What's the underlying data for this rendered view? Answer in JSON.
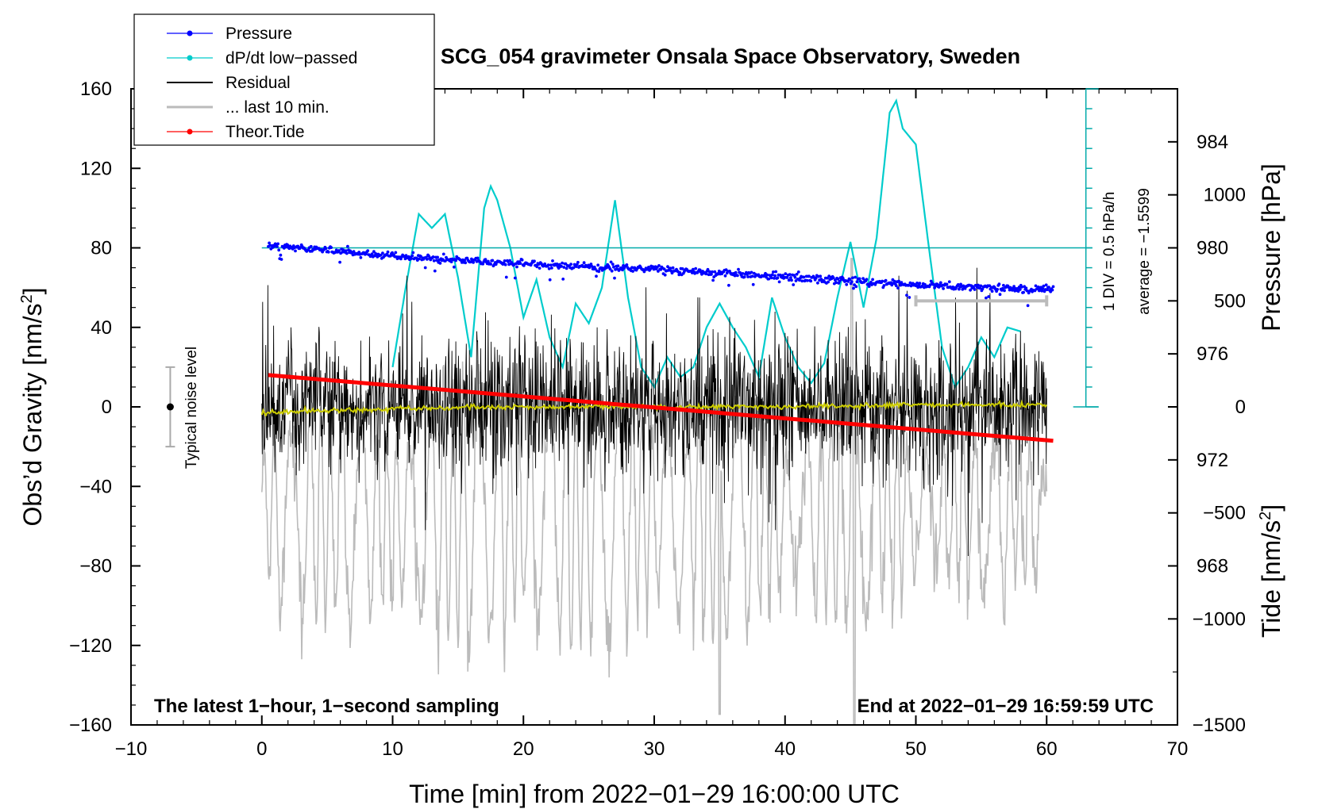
{
  "chart_data": {
    "type": "line",
    "title": "SCG_054 gravimeter Onsala Space Observatory, Sweden",
    "xlabel": "Time [min] from 2022−01−29 16:00:00 UTC",
    "ylabel_left": "Obs’d Gravity [nm/s",
    "ylabel_right_top": "Pressure [hPa]",
    "ylabel_right_bottom": "Tide [nm/s",
    "superscript": "2",
    "close_bracket": "]",
    "xlim": [
      -10,
      70
    ],
    "ylim": [
      -160,
      160
    ],
    "x_ticks": [
      "−10",
      "0",
      "10",
      "20",
      "30",
      "40",
      "50",
      "60",
      "70"
    ],
    "y_ticks": [
      "160",
      "120",
      "80",
      "40",
      "0",
      "−40",
      "−80",
      "−120",
      "−160"
    ],
    "pressure_axis": {
      "range": [
        962,
        986
      ],
      "ticks": [
        "984",
        "980",
        "976",
        "972",
        "968"
      ]
    },
    "tide_axis": {
      "range": [
        -1500,
        1500
      ],
      "ticks": [
        "1000",
        "500",
        "0",
        "−500",
        "−1000",
        "−1500"
      ]
    },
    "legend": [
      {
        "label": "Pressure",
        "color": "#0000ff",
        "marker": "dot"
      },
      {
        "label": "dP/dt low−passed",
        "color": "#00cccc",
        "marker": "dot"
      },
      {
        "label": "Residual",
        "color": "#000000",
        "marker": "line"
      },
      {
        "label": "... last 10 min.",
        "color": "#bbbbbb",
        "marker": "line"
      },
      {
        "label": "Theor.Tide",
        "color": "#ff0000",
        "marker": "dot"
      }
    ],
    "series": [
      {
        "name": "Pressure",
        "axis": "pressure",
        "color": "#0000ff",
        "x": [
          0.5,
          10,
          20,
          30,
          40,
          50,
          60.5
        ],
        "values": [
          980.1,
          979.7,
          979.4,
          979.2,
          978.9,
          978.6,
          978.4
        ]
      },
      {
        "name": "dP/dt low-passed",
        "axis": "gravity",
        "color": "#00cccc",
        "x": [
          10,
          11,
          12,
          13,
          14,
          15,
          16,
          17,
          17.5,
          18,
          19,
          20,
          21,
          22,
          23,
          24,
          25,
          26,
          27,
          28,
          29,
          30,
          31,
          32,
          33,
          34,
          35,
          36,
          37,
          38,
          39,
          40,
          41,
          42,
          43,
          44,
          45,
          46,
          47,
          48,
          48.5,
          49,
          50,
          51,
          52,
          53,
          54,
          55,
          56,
          57,
          58
        ],
        "values": [
          20,
          60,
          97,
          90,
          97,
          65,
          25,
          100,
          111,
          104,
          80,
          45,
          64,
          35,
          20,
          52,
          42,
          60,
          104,
          55,
          20,
          10,
          25,
          15,
          20,
          40,
          52,
          40,
          30,
          15,
          55,
          35,
          20,
          12,
          22,
          55,
          83,
          50,
          85,
          148,
          154,
          140,
          132,
          80,
          30,
          10,
          20,
          35,
          25,
          40,
          38
        ]
      },
      {
        "name": "Residual",
        "axis": "gravity",
        "color": "#000000",
        "x_range": [
          0,
          60
        ],
        "amplitude": 30,
        "extremes": [
          70,
          -75
        ]
      },
      {
        "name": "Residual smoothed",
        "axis": "gravity",
        "color": "#cccc00",
        "x": [
          0,
          10,
          20,
          30,
          40,
          50,
          60
        ],
        "values": [
          -3,
          -1,
          0,
          0,
          0,
          1,
          1
        ]
      },
      {
        "name": "... last 10 min.",
        "axis": "tide",
        "color": "#bbbbbb",
        "x_range": [
          0,
          60
        ],
        "center": -500,
        "amplitude": 500
      },
      {
        "name": "Theor.Tide",
        "axis": "tide",
        "color": "#ff0000",
        "x": [
          0.5,
          60.5
        ],
        "values": [
          150,
          -160
        ]
      }
    ],
    "reference_line": {
      "axis": "gravity",
      "value": 80,
      "color": "#00aaaa"
    },
    "dpdt_scale": {
      "label_1": "1 DIV = 0.5 hPa/h",
      "label_2": "average = −1.5599",
      "x": 63,
      "y_bottom": 0,
      "y_top": 160
    },
    "noise_bar": {
      "label": "Typical noise level",
      "x": -7,
      "center": 0,
      "low": -20,
      "high": 20
    },
    "ten_min_marker": {
      "x_start": 50,
      "x_end": 60,
      "tide_value": 500
    },
    "note_left": "The latest 1−hour, 1−second sampling",
    "note_right": "End at 2022−01−29 16:59:59 UTC"
  }
}
